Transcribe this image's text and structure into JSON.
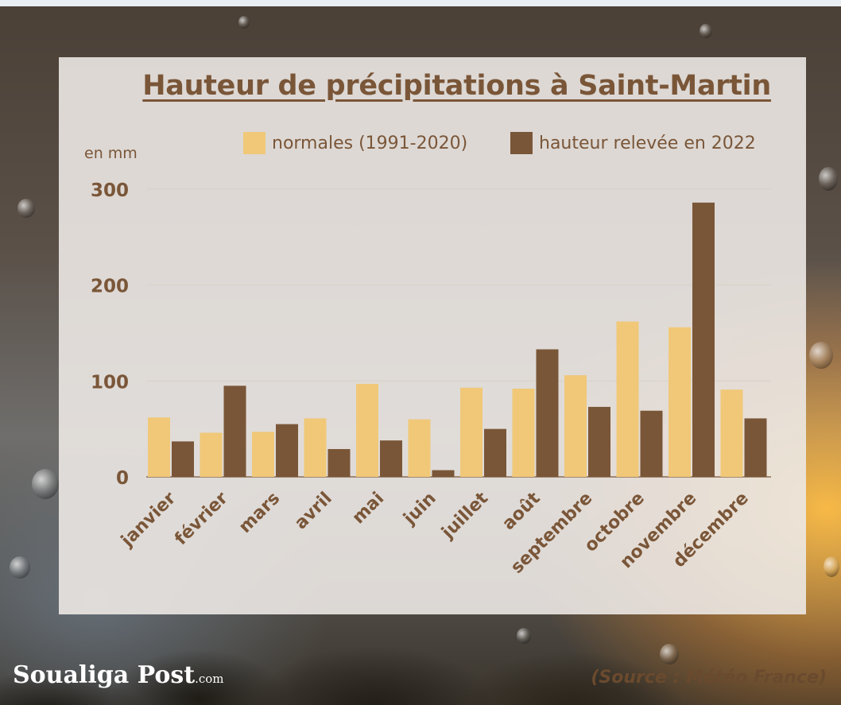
{
  "chart_data": {
    "type": "bar",
    "title": "Hauteur de précipitations à Saint-Martin",
    "ylabel": "en mm",
    "ylim": [
      0,
      300
    ],
    "yticks": [
      "0",
      "100",
      "200",
      "300"
    ],
    "categories": [
      "janvier",
      "février",
      "mars",
      "avril",
      "mai",
      "juin",
      "juillet",
      "août",
      "septembre",
      "octobre",
      "novembre",
      "décembre"
    ],
    "series": [
      {
        "name": "normales (1991-2020)",
        "color": "#f0c878",
        "values": [
          62,
          46,
          47,
          61,
          97,
          60,
          93,
          92,
          106,
          162,
          156,
          91
        ]
      },
      {
        "name": "hauteur relevée en 2022",
        "color": "#7a5638",
        "values": [
          37,
          95,
          55,
          29,
          38,
          7,
          50,
          133,
          73,
          69,
          286,
          61
        ]
      }
    ],
    "grid": true,
    "legend_position": "top-right"
  },
  "footer": {
    "logo_name": "Soualiga Post",
    "logo_suffix": ".com",
    "source": "(Source :  Météo France)"
  },
  "colors": {
    "text_brown": "#7a5638",
    "gridline": "#d8d0c6"
  }
}
